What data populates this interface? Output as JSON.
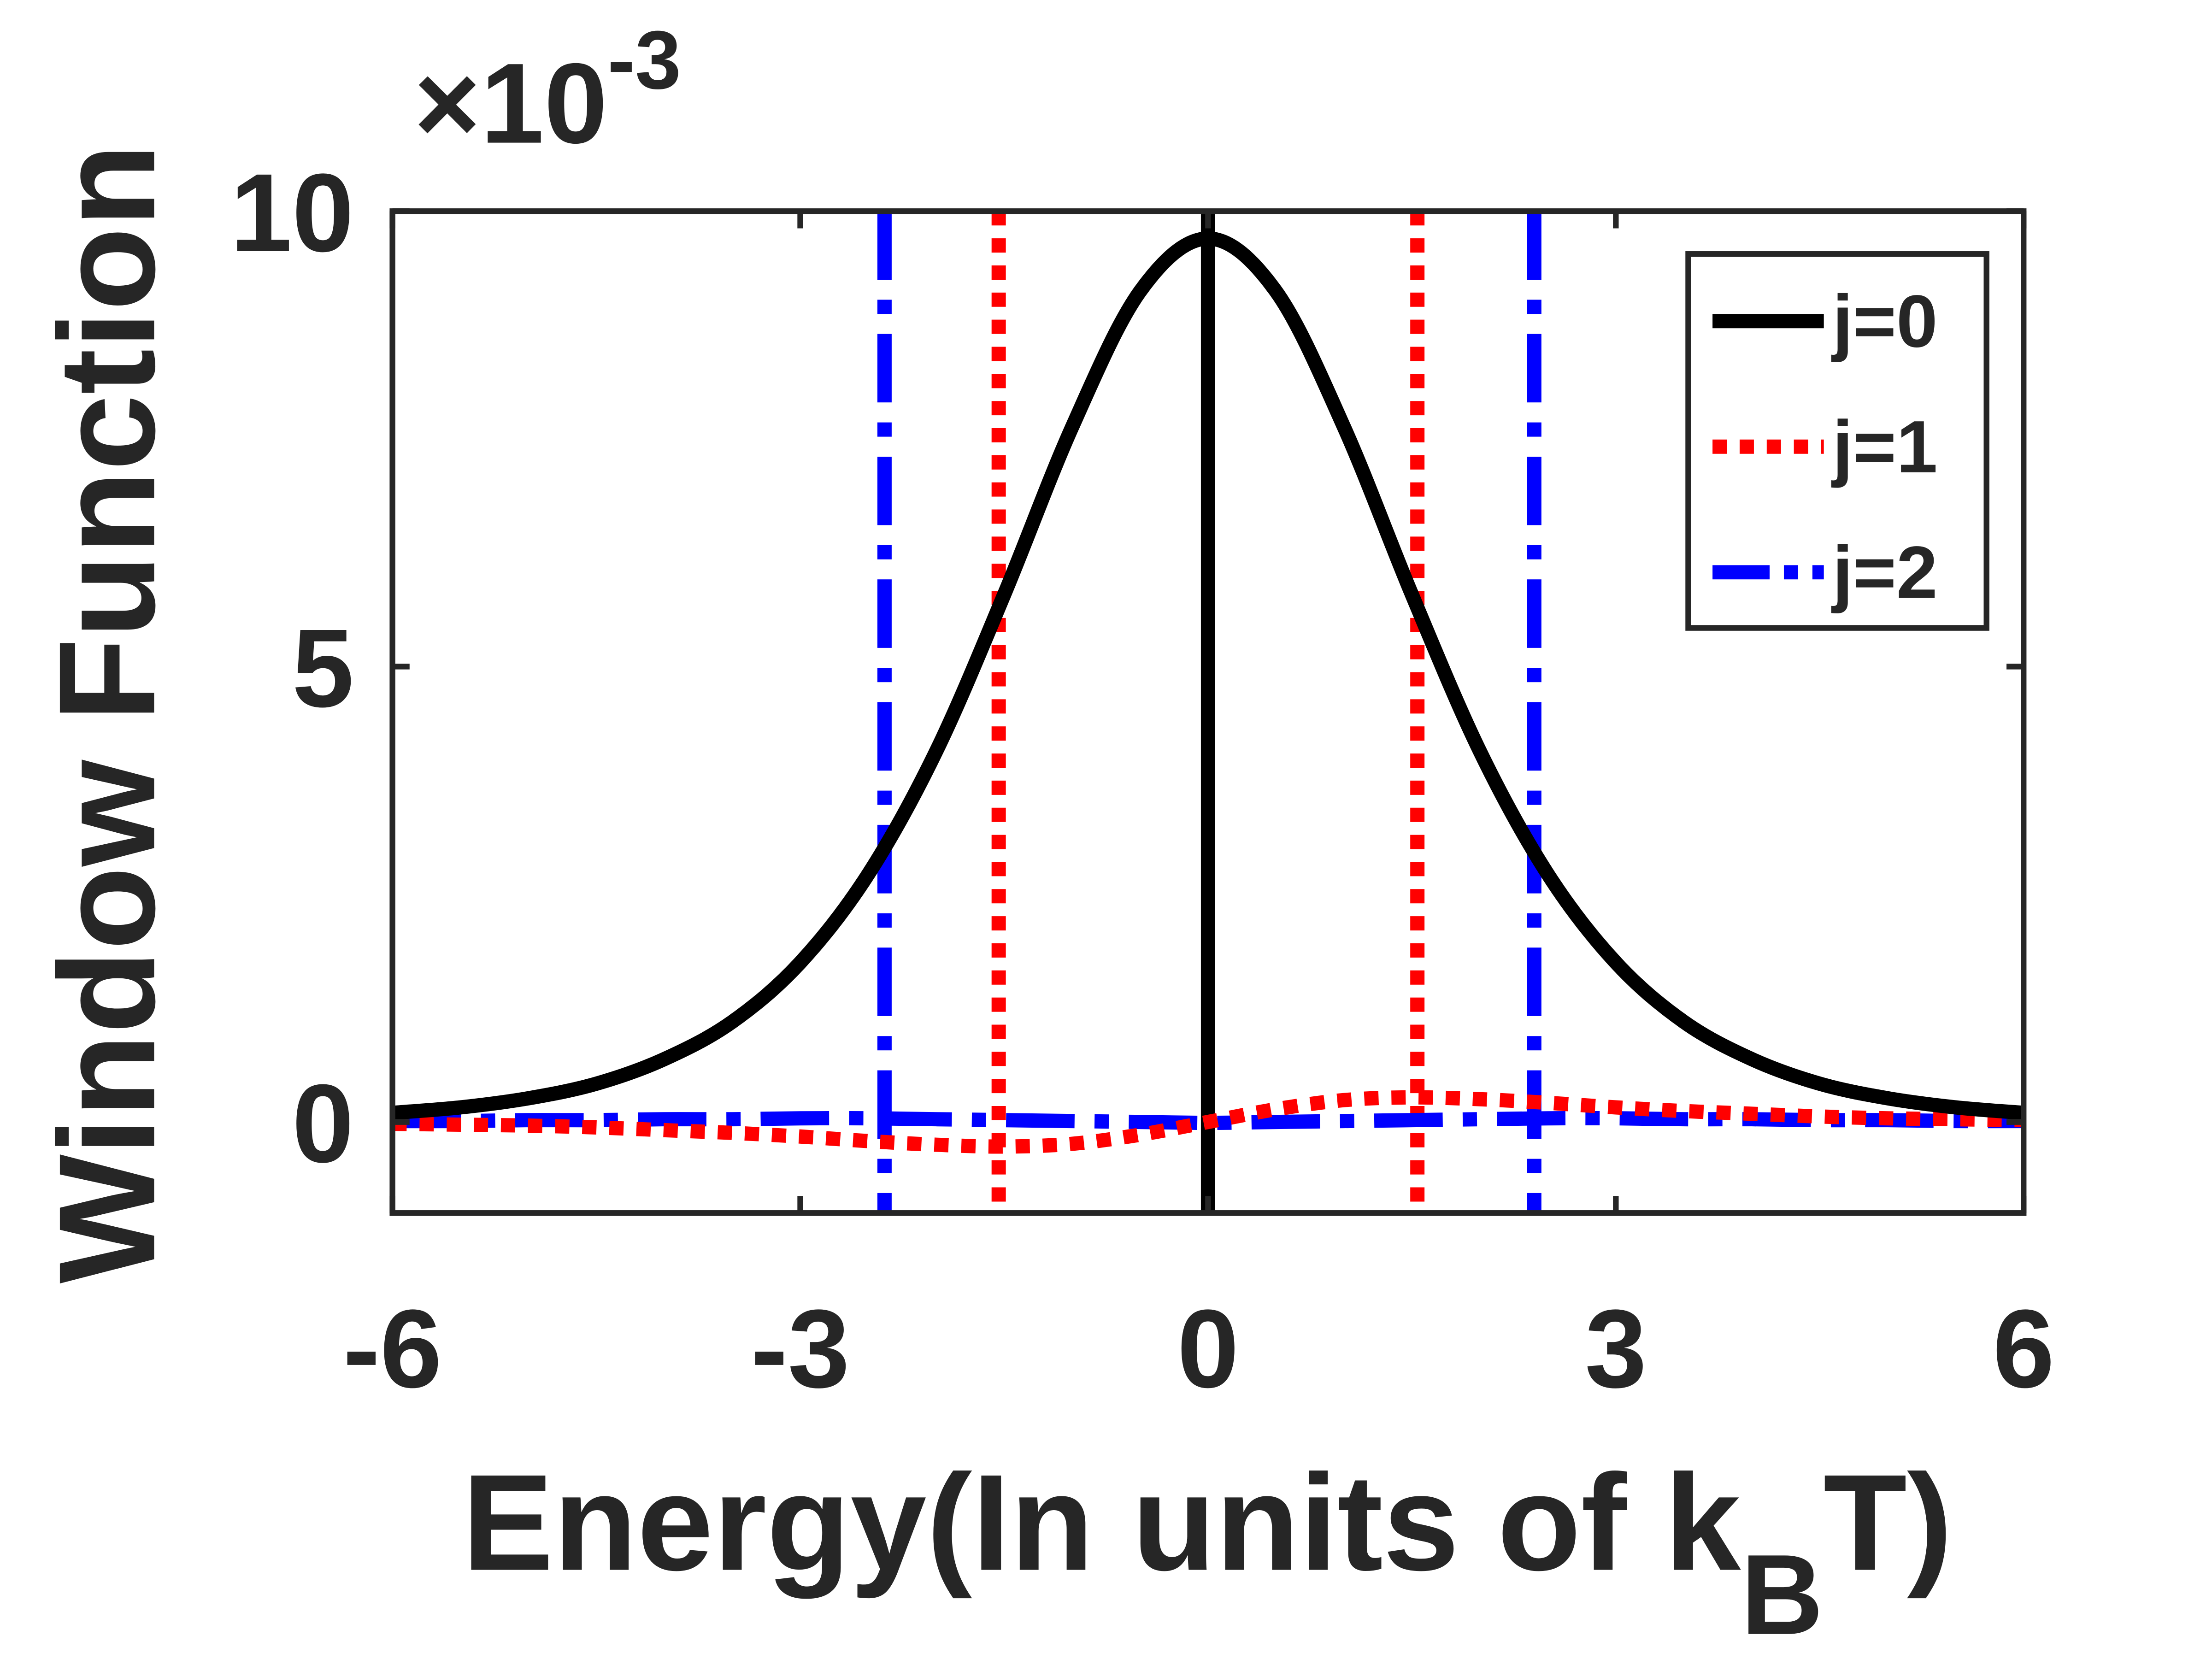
{
  "chart_data": {
    "type": "line",
    "ylabel": "Window Function",
    "xlabel": {
      "parts": [
        "Energy(In units of k",
        "B",
        "T)"
      ]
    },
    "y_multiplier": {
      "base": "×10",
      "exponent": "-3"
    },
    "x": [
      -6,
      -5.5,
      -5,
      -4.5,
      -4,
      -3.5,
      -3,
      -2.5,
      -2,
      -1.5,
      -1,
      -0.5,
      0,
      0.5,
      1,
      1.5,
      2,
      2.5,
      3,
      3.5,
      4,
      4.5,
      5,
      5.5,
      6
    ],
    "xlim": [
      -6,
      6
    ],
    "xticks": [
      -6,
      -3,
      0,
      3,
      6
    ],
    "ylim": [
      -1,
      10
    ],
    "yticks": [
      0,
      5,
      10
    ],
    "legend": "northeast",
    "series": [
      {
        "name": "j=0",
        "color": "#000000",
        "style": "solid",
        "vlines": [
          0
        ],
        "values": [
          0.1,
          0.16,
          0.26,
          0.42,
          0.69,
          1.1,
          1.75,
          2.72,
          4.07,
          5.79,
          7.63,
          9.12,
          9.7,
          9.12,
          7.63,
          5.79,
          4.07,
          2.72,
          1.75,
          1.1,
          0.69,
          0.42,
          0.26,
          0.16,
          0.1
        ]
      },
      {
        "name": "j=1",
        "color": "#ff0000",
        "style": "dotted",
        "vlines": [
          -1.54,
          1.54
        ],
        "values": [
          -0.02,
          -0.03,
          -0.04,
          -0.06,
          -0.09,
          -0.12,
          -0.16,
          -0.21,
          -0.25,
          -0.27,
          -0.24,
          -0.14,
          0,
          0.14,
          0.24,
          0.27,
          0.25,
          0.21,
          0.16,
          0.12,
          0.09,
          0.06,
          0.04,
          0.03,
          0.02
        ]
      },
      {
        "name": "j=2",
        "color": "#0000ff",
        "style": "dashdot",
        "vlines": [
          -2.38,
          2.4
        ],
        "values": [
          0.01,
          0.01,
          0.02,
          0.02,
          0.03,
          0.03,
          0.04,
          0.04,
          0.03,
          0.02,
          0.01,
          0.0,
          -0.01,
          0.0,
          0.01,
          0.02,
          0.03,
          0.04,
          0.04,
          0.03,
          0.03,
          0.02,
          0.02,
          0.01,
          0.01
        ]
      }
    ]
  }
}
